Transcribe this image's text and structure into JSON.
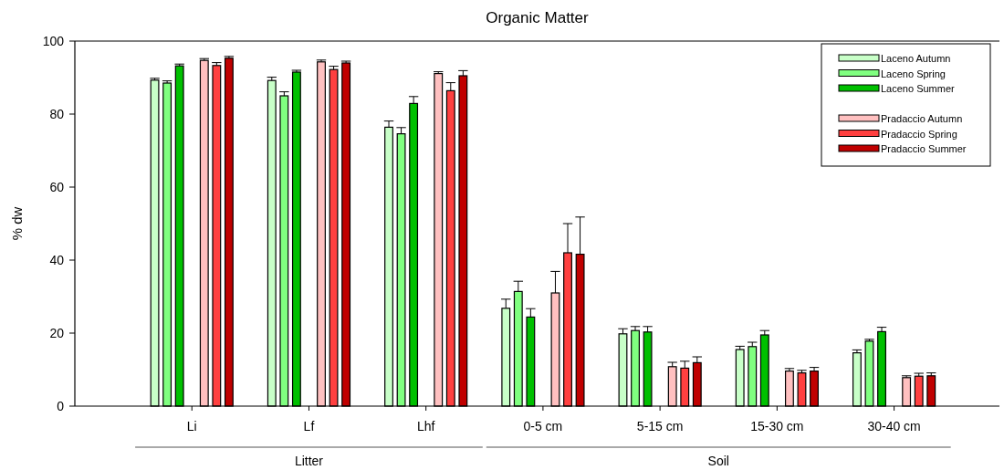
{
  "chart_data": {
    "type": "bar",
    "title": "Organic Matter",
    "ylabel": "% dw",
    "categories": [
      "Li",
      "Lf",
      "Lhf",
      "0-5 cm",
      "5-15 cm",
      "15-30 cm",
      "30-40 cm"
    ],
    "series": [
      {
        "name": "Laceno Autumn",
        "color": "#c8ffc8",
        "values": [
          89.3,
          89.2,
          76.4,
          26.8,
          19.8,
          15.5,
          14.6
        ],
        "errors": [
          0.5,
          0.9,
          1.7,
          2.5,
          1.4,
          0.9,
          0.8
        ]
      },
      {
        "name": "Laceno Spring",
        "color": "#80ff80",
        "values": [
          88.5,
          85.0,
          74.6,
          31.4,
          20.7,
          16.3,
          17.8
        ],
        "errors": [
          0.6,
          1.1,
          1.7,
          2.8,
          1.1,
          1.2,
          0.5
        ]
      },
      {
        "name": "Laceno Summer",
        "color": "#00c000",
        "values": [
          93.2,
          91.5,
          82.9,
          24.4,
          20.3,
          19.5,
          20.4
        ],
        "errors": [
          0.5,
          0.5,
          1.9,
          2.3,
          1.5,
          1.2,
          1.2
        ]
      },
      {
        "name": "Pradaccio Autumn",
        "color": "#ffc0c0",
        "values": [
          94.7,
          94.3,
          91.1,
          31.0,
          10.8,
          9.6,
          7.8
        ],
        "errors": [
          0.5,
          0.5,
          0.5,
          5.9,
          1.2,
          0.7,
          0.5
        ]
      },
      {
        "name": "Pradaccio Spring",
        "color": "#ff4040",
        "values": [
          93.3,
          92.2,
          86.4,
          42.0,
          10.4,
          9.1,
          8.2
        ],
        "errors": [
          0.8,
          0.9,
          2.2,
          8.0,
          1.9,
          0.7,
          0.8
        ]
      },
      {
        "name": "Pradaccio Summer",
        "color": "#c00000",
        "values": [
          95.3,
          94.0,
          90.5,
          41.6,
          11.9,
          9.6,
          8.3
        ],
        "errors": [
          0.5,
          0.5,
          1.4,
          10.2,
          1.6,
          1.0,
          0.8
        ]
      }
    ],
    "ylim": [
      0,
      100
    ],
    "yticks": [
      0,
      20,
      40,
      60,
      80,
      100
    ],
    "grid": false,
    "legend": "top right",
    "annotations": [
      "Litter",
      "Soil"
    ]
  }
}
